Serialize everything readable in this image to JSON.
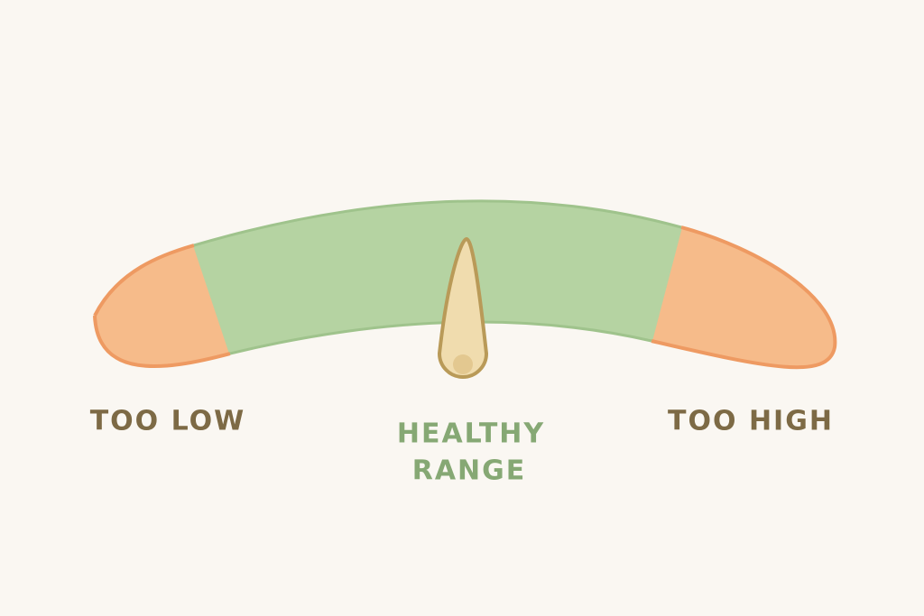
{
  "labels": {
    "low": "TOO LOW",
    "healthy": [
      "HEALTHY",
      "RANGE"
    ],
    "high": "TOO HIGH"
  }
}
